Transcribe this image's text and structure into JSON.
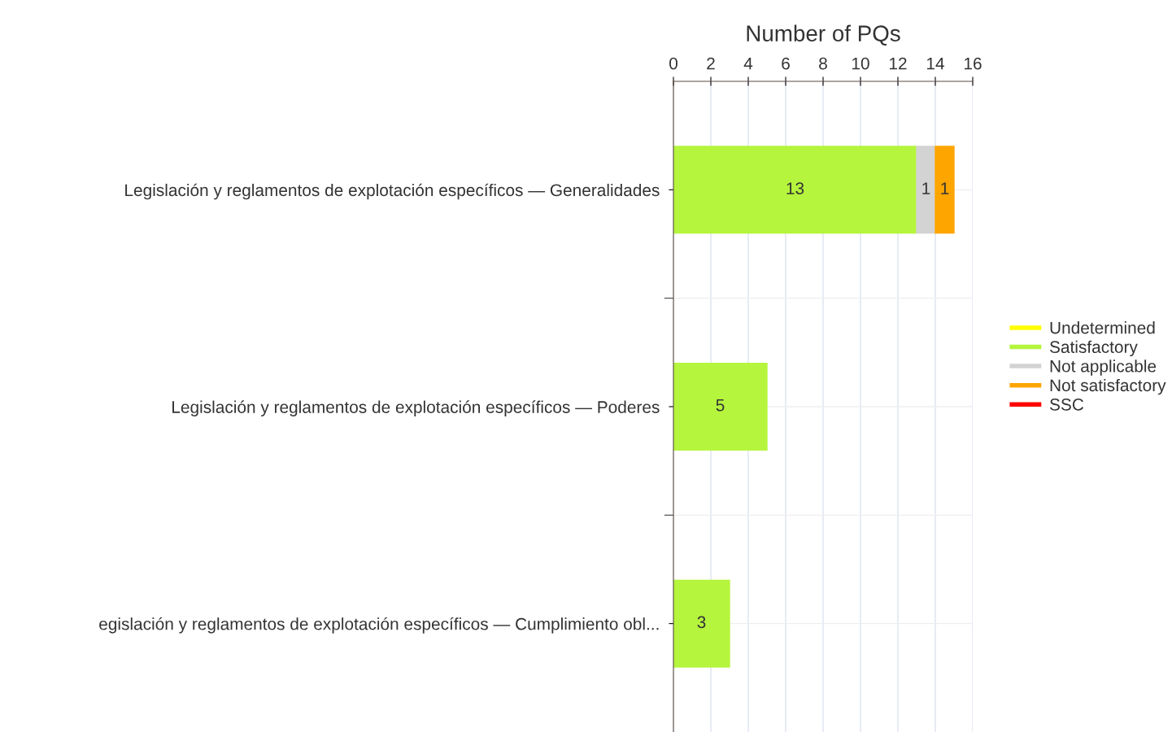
{
  "chart_data": {
    "type": "bar",
    "orientation": "horizontal",
    "stacked": true,
    "xlabel": "Number of PQs",
    "categories": [
      "Legislación y reglamentos de explotación específicos — Generalidades",
      "Legislación y reglamentos de explotación específicos — Poderes",
      "egislación y reglamentos de explotación específicos — Cumplimiento obl..."
    ],
    "series": [
      {
        "name": "Undetermined",
        "color": "#ffff00",
        "values": [
          0,
          0,
          0
        ],
        "value_labels": [
          null,
          null,
          null
        ]
      },
      {
        "name": "Satisfactory",
        "color": "#b5f53d",
        "values": [
          13,
          5,
          3
        ],
        "value_labels": [
          "13",
          "5",
          "3"
        ]
      },
      {
        "name": "Not applicable",
        "color": "#d3d3d3",
        "values": [
          1,
          0,
          0
        ],
        "value_labels": [
          "1",
          null,
          null
        ]
      },
      {
        "name": "Not satisfactory",
        "color": "#ffa500",
        "values": [
          1,
          0,
          0
        ],
        "value_labels": [
          "1",
          null,
          null
        ]
      },
      {
        "name": "SSC",
        "color": "#ff0000",
        "values": [
          0,
          0,
          0
        ],
        "value_labels": [
          null,
          null,
          null
        ]
      }
    ],
    "xlim": [
      0,
      16
    ],
    "xticks": [
      0,
      2,
      4,
      6,
      8,
      10,
      12,
      14,
      16
    ],
    "grid": true,
    "legend": "right"
  }
}
